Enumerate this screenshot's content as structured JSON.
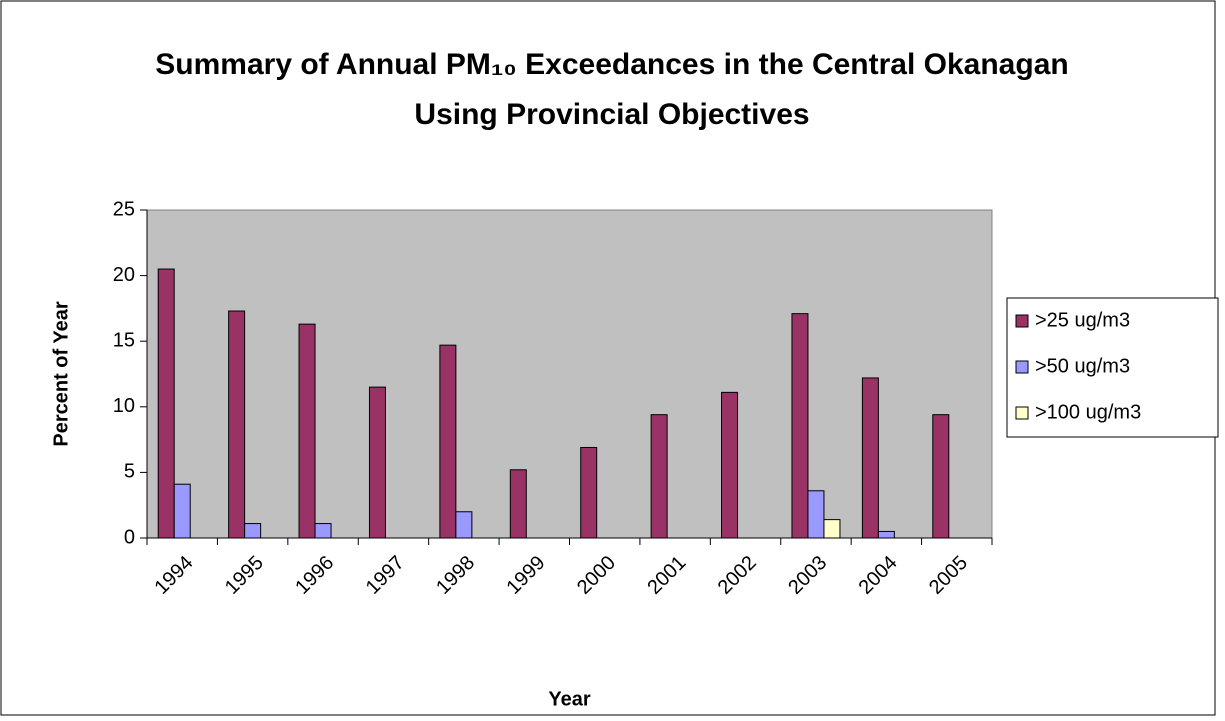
{
  "chart_data": {
    "type": "bar",
    "title": "Summary of Annual PM₁₀ Exceedances in the Central Okanagan Using Provincial Objectives",
    "x_label": "Year",
    "y_label": "Percent of Year",
    "categories": [
      "1994",
      "1995",
      "1996",
      "1997",
      "1998",
      "1999",
      "2000",
      "2001",
      "2002",
      "2003",
      "2004",
      "2005"
    ],
    "series": [
      {
        "name": ">25 ug/m3",
        "color": "#993366",
        "values": [
          20.5,
          17.3,
          16.3,
          11.5,
          14.7,
          5.2,
          6.9,
          9.4,
          11.1,
          17.1,
          12.2,
          9.4
        ]
      },
      {
        "name": ">50 ug/m3",
        "color": "#9999ff",
        "values": [
          4.1,
          1.1,
          1.1,
          0,
          2.0,
          0,
          0,
          0,
          0,
          3.6,
          0.5,
          0
        ]
      },
      {
        "name": ">100 ug/m3",
        "color": "#ffffcc",
        "values": [
          0,
          0,
          0,
          0,
          0,
          0,
          0,
          0,
          0,
          1.4,
          0,
          0
        ]
      }
    ],
    "ylim": [
      0,
      25
    ],
    "yticks": [
      0,
      5,
      10,
      15,
      20,
      25
    ],
    "plot_background": "#c0c0c0",
    "legend": "right"
  }
}
